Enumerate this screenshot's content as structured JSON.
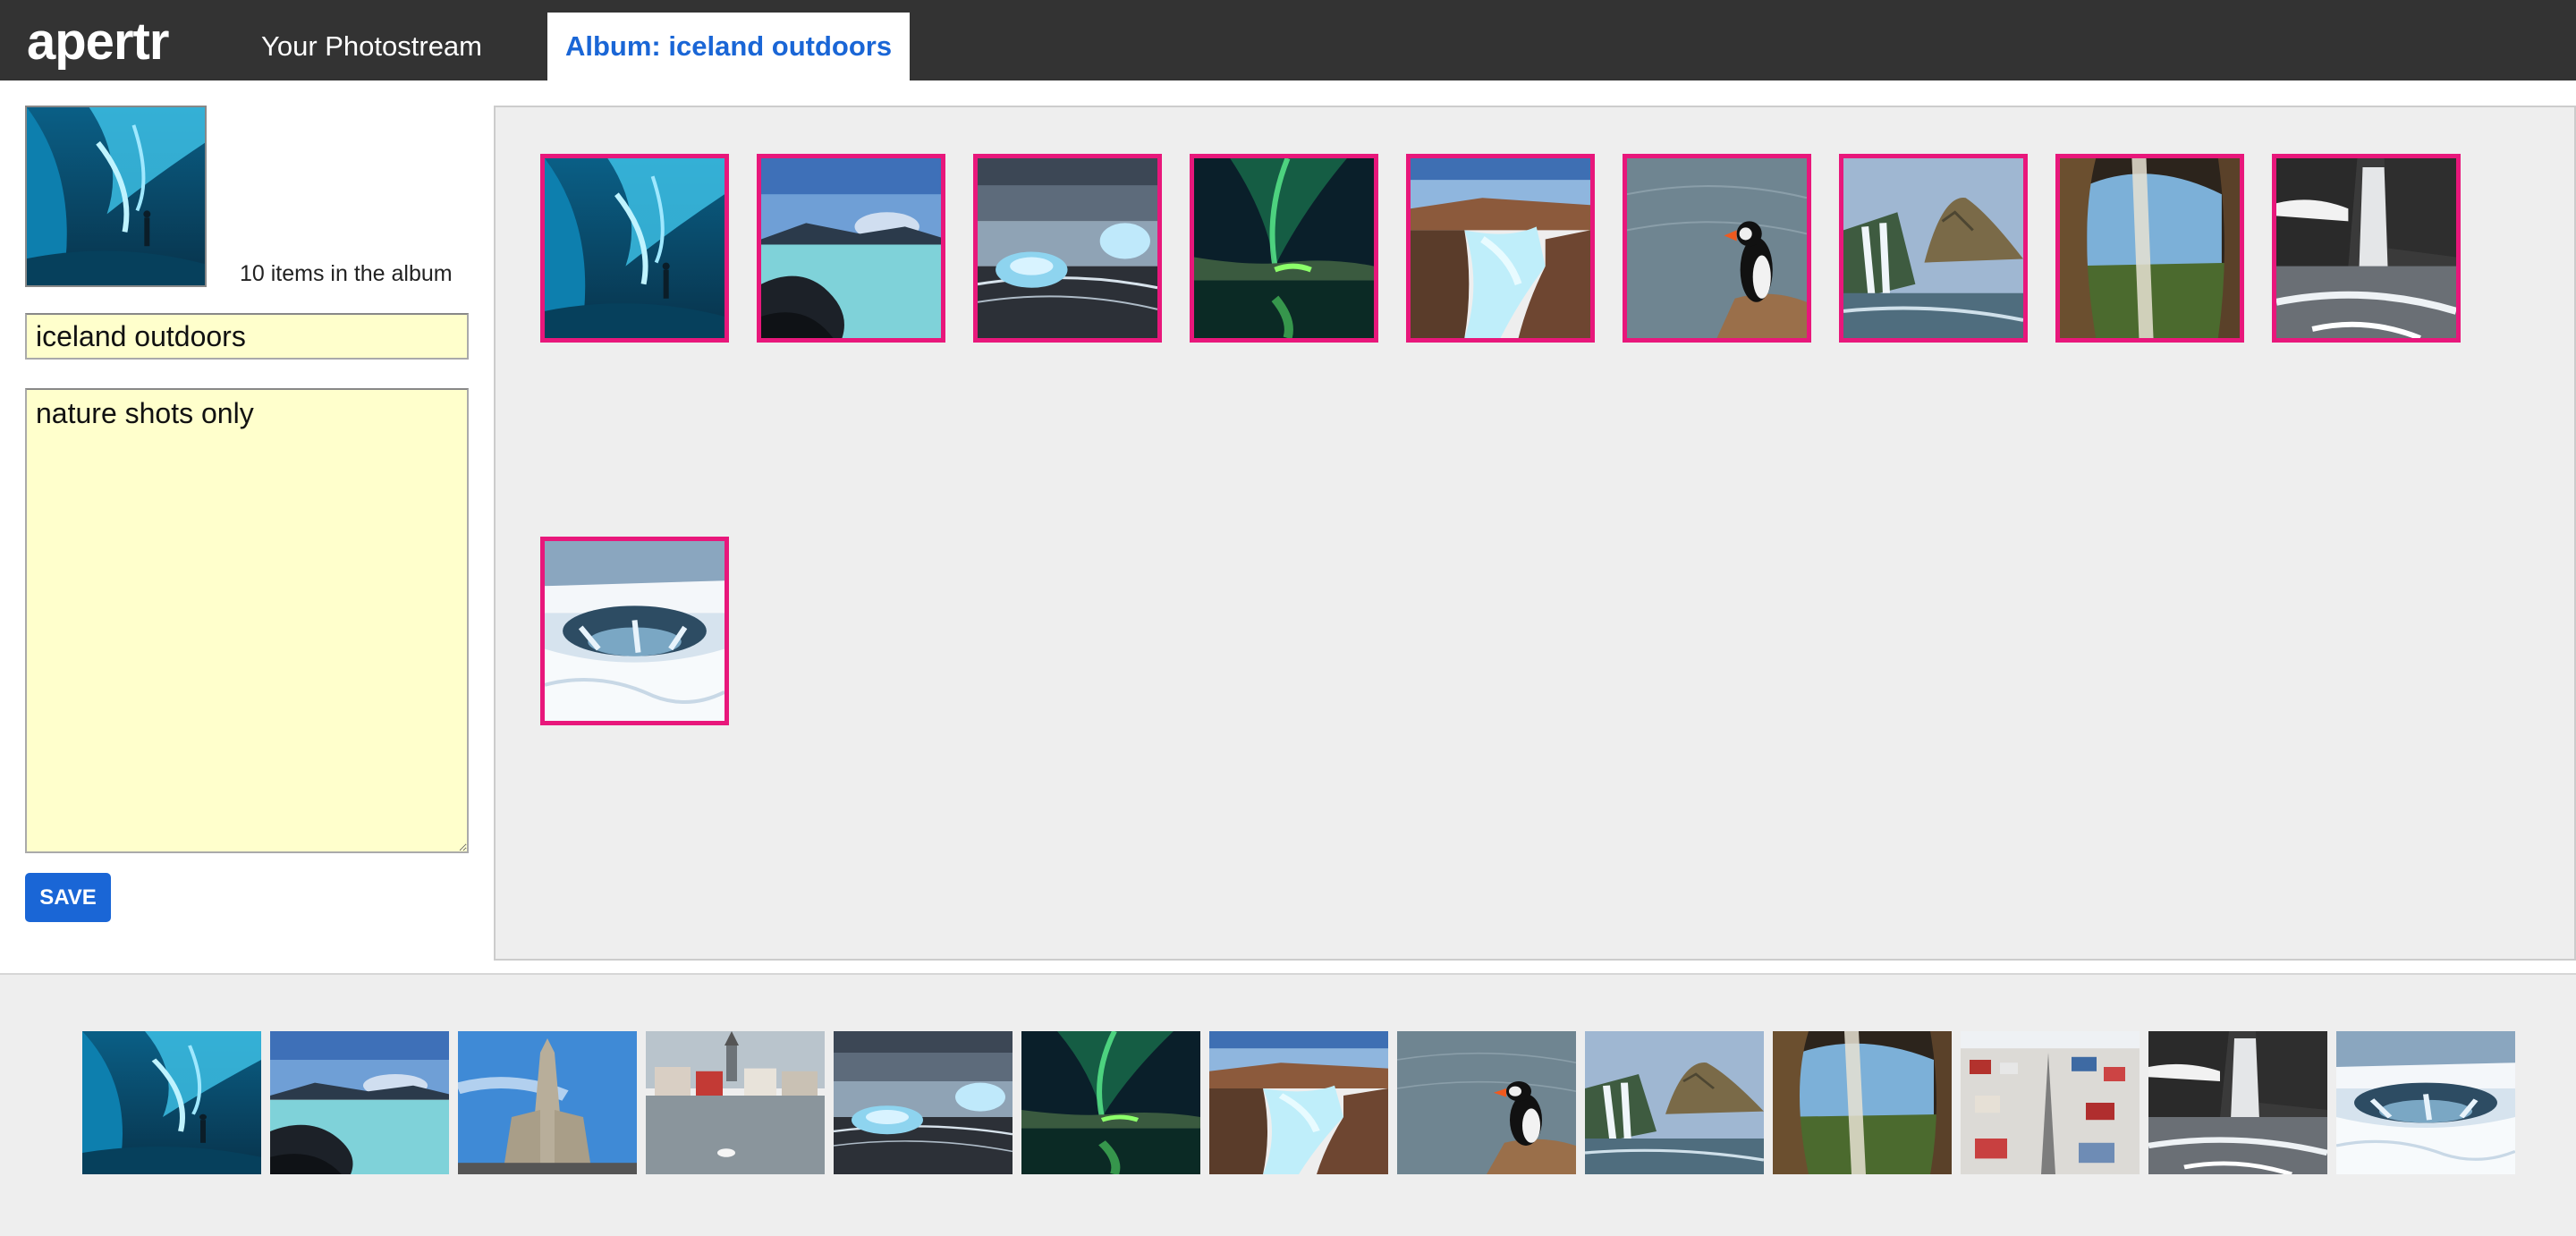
{
  "header": {
    "logo": "apertr",
    "tabs": [
      {
        "label": "Your Photostream",
        "active": false
      },
      {
        "label": "Album: iceland outdoors",
        "active": true
      }
    ]
  },
  "sidebar": {
    "cover_photo": "ice-cave",
    "item_count": "10 items in the album",
    "title_value": "iceland outdoors",
    "description_value": "nature shots only",
    "save_label": "SAVE"
  },
  "album": {
    "photos": [
      "ice-cave",
      "blue-lagoon",
      "diamond-beach",
      "aurora",
      "gullfoss",
      "puffin",
      "kirkjufell",
      "seljalandsfoss",
      "skogafoss",
      "godafoss"
    ]
  },
  "photostream": {
    "photos": [
      "ice-cave",
      "blue-lagoon",
      "hallgrimskirkja",
      "reykjavik-pond",
      "diamond-beach",
      "aurora",
      "gullfoss",
      "puffin",
      "kirkjufell",
      "seljalandsfoss",
      "reykjavik-aerial",
      "skogafoss",
      "godafoss"
    ]
  },
  "colors": {
    "header_bg": "#333333",
    "accent": "#1a66d6",
    "selection_border": "#e8177b",
    "input_bg": "#ffffcc",
    "panel_bg": "#eeeeee"
  }
}
